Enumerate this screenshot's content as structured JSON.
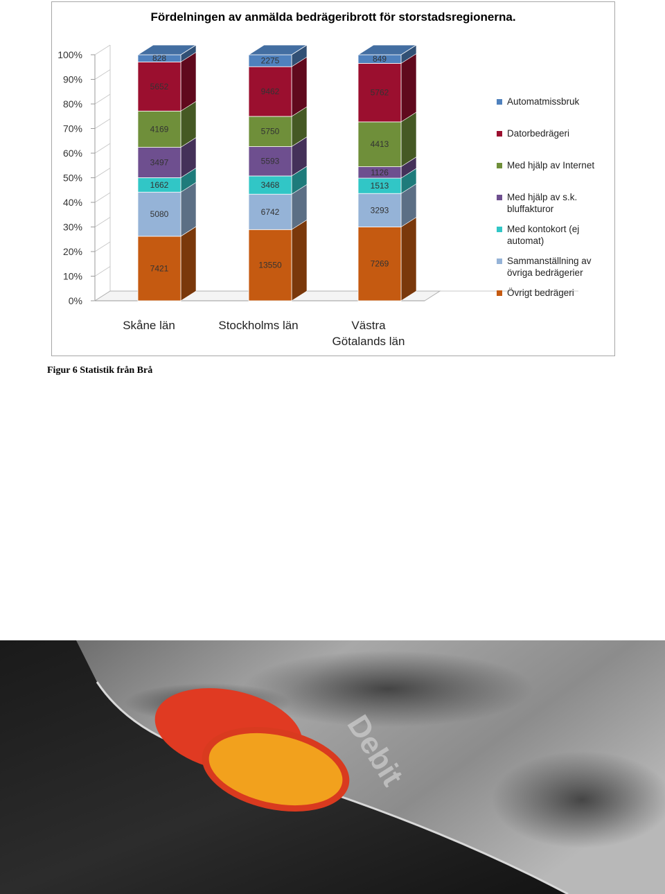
{
  "chart_data": {
    "type": "bar",
    "stacked": "percent",
    "three_d": true,
    "title": "Fördelningen av anmälda bedrägeribrott för storstadsregionerna.",
    "categories": [
      "Skåne län",
      "Stockholms län",
      "Västra Götalands län"
    ],
    "category_lines": [
      [
        "Skåne län"
      ],
      [
        "Stockholms län"
      ],
      [
        "Västra",
        "Götalands län"
      ]
    ],
    "ytick_labels": [
      "0%",
      "10%",
      "20%",
      "30%",
      "40%",
      "50%",
      "60%",
      "70%",
      "80%",
      "90%",
      "100%"
    ],
    "ylim": [
      0,
      100
    ],
    "legend_position": "right",
    "series": [
      {
        "name": "Övrigt bedrägeri",
        "color": "#c55a11",
        "values": [
          7421,
          13550,
          7269
        ]
      },
      {
        "name": "Sammanställning av övriga bedrägerier",
        "color": "#95b3d7",
        "values": [
          5080,
          6742,
          3293
        ]
      },
      {
        "name": "Med kontokort (ej automat)",
        "color": "#31c6c6",
        "values": [
          1662,
          3468,
          1513
        ]
      },
      {
        "name": "Med hjälp av s.k. bluffakturor",
        "color": "#6e4f8f",
        "values": [
          3497,
          5593,
          1126
        ]
      },
      {
        "name": "Med hjälp av Internet",
        "color": "#6f8f3a",
        "values": [
          4169,
          5750,
          4413
        ]
      },
      {
        "name": "Datorbedrägeri",
        "color": "#9b0f2f",
        "values": [
          5652,
          9462,
          5762
        ]
      },
      {
        "name": "Automatmissbruk",
        "color": "#4f81bd",
        "values": [
          828,
          2275,
          849
        ]
      }
    ],
    "legend": [
      {
        "lines": [
          "Automatmissbruk"
        ],
        "color": "#4f81bd"
      },
      {
        "lines": [
          "Datorbedrägeri"
        ],
        "color": "#9b0f2f"
      },
      {
        "lines": [
          "Med hjälp av Internet"
        ],
        "color": "#6f8f3a"
      },
      {
        "lines": [
          "Med hjälp av s.k.",
          "bluffakturor"
        ],
        "color": "#6e4f8f"
      },
      {
        "lines": [
          "Med kontokort (ej",
          "automat)"
        ],
        "color": "#31c6c6"
      },
      {
        "lines": [
          "Sammanställning av",
          "övriga bedrägerier"
        ],
        "color": "#95b3d7"
      },
      {
        "lines": [
          "Övrigt bedrägeri"
        ],
        "color": "#c55a11"
      }
    ]
  },
  "caption": "Figur 6 Statistik från Brå",
  "photo": {
    "card_text": "Debit"
  }
}
